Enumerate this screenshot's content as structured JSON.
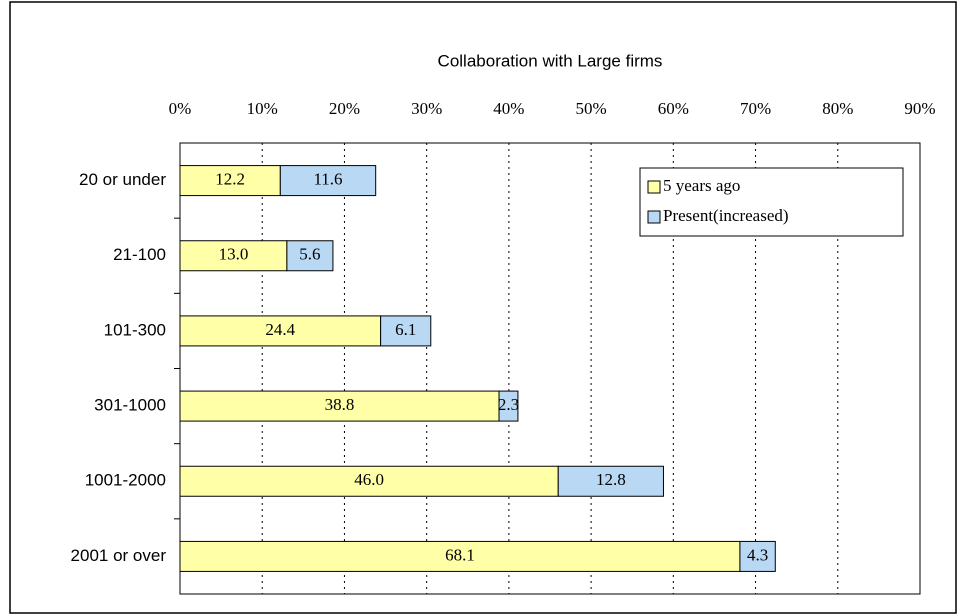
{
  "chart_data": {
    "type": "stacked_barh",
    "title": "Collaboration with Large firms",
    "categories": [
      "20 or under",
      "21-100",
      "101-300",
      "301-1000",
      "1001-2000",
      "2001 or over"
    ],
    "series": [
      {
        "name": "5 years ago",
        "color": "#ffffa8",
        "values": [
          12.2,
          13.0,
          24.4,
          38.8,
          46.0,
          68.1
        ],
        "value_labels": [
          "12.2",
          "13.0",
          "24.4",
          "38.8",
          "46.0",
          "68.1"
        ]
      },
      {
        "name": "Present(increased)",
        "color": "#b8d8f4",
        "values": [
          11.6,
          5.6,
          6.1,
          2.3,
          12.8,
          4.3
        ],
        "value_labels": [
          "11.6",
          "5.6",
          "6.1",
          "2.3",
          "12.8",
          "4.3"
        ]
      }
    ],
    "xlim": [
      0,
      90
    ],
    "xticks": [
      {
        "value": 0,
        "label": "0%"
      },
      {
        "value": 10,
        "label": "10%"
      },
      {
        "value": 20,
        "label": "20%"
      },
      {
        "value": 30,
        "label": "30%"
      },
      {
        "value": 40,
        "label": "40%"
      },
      {
        "value": 50,
        "label": "50%"
      },
      {
        "value": 60,
        "label": "60%"
      },
      {
        "value": 70,
        "label": "70%"
      },
      {
        "value": 80,
        "label": "80%"
      },
      {
        "value": 90,
        "label": "90%"
      }
    ],
    "grid": true,
    "legend": "upper right"
  }
}
